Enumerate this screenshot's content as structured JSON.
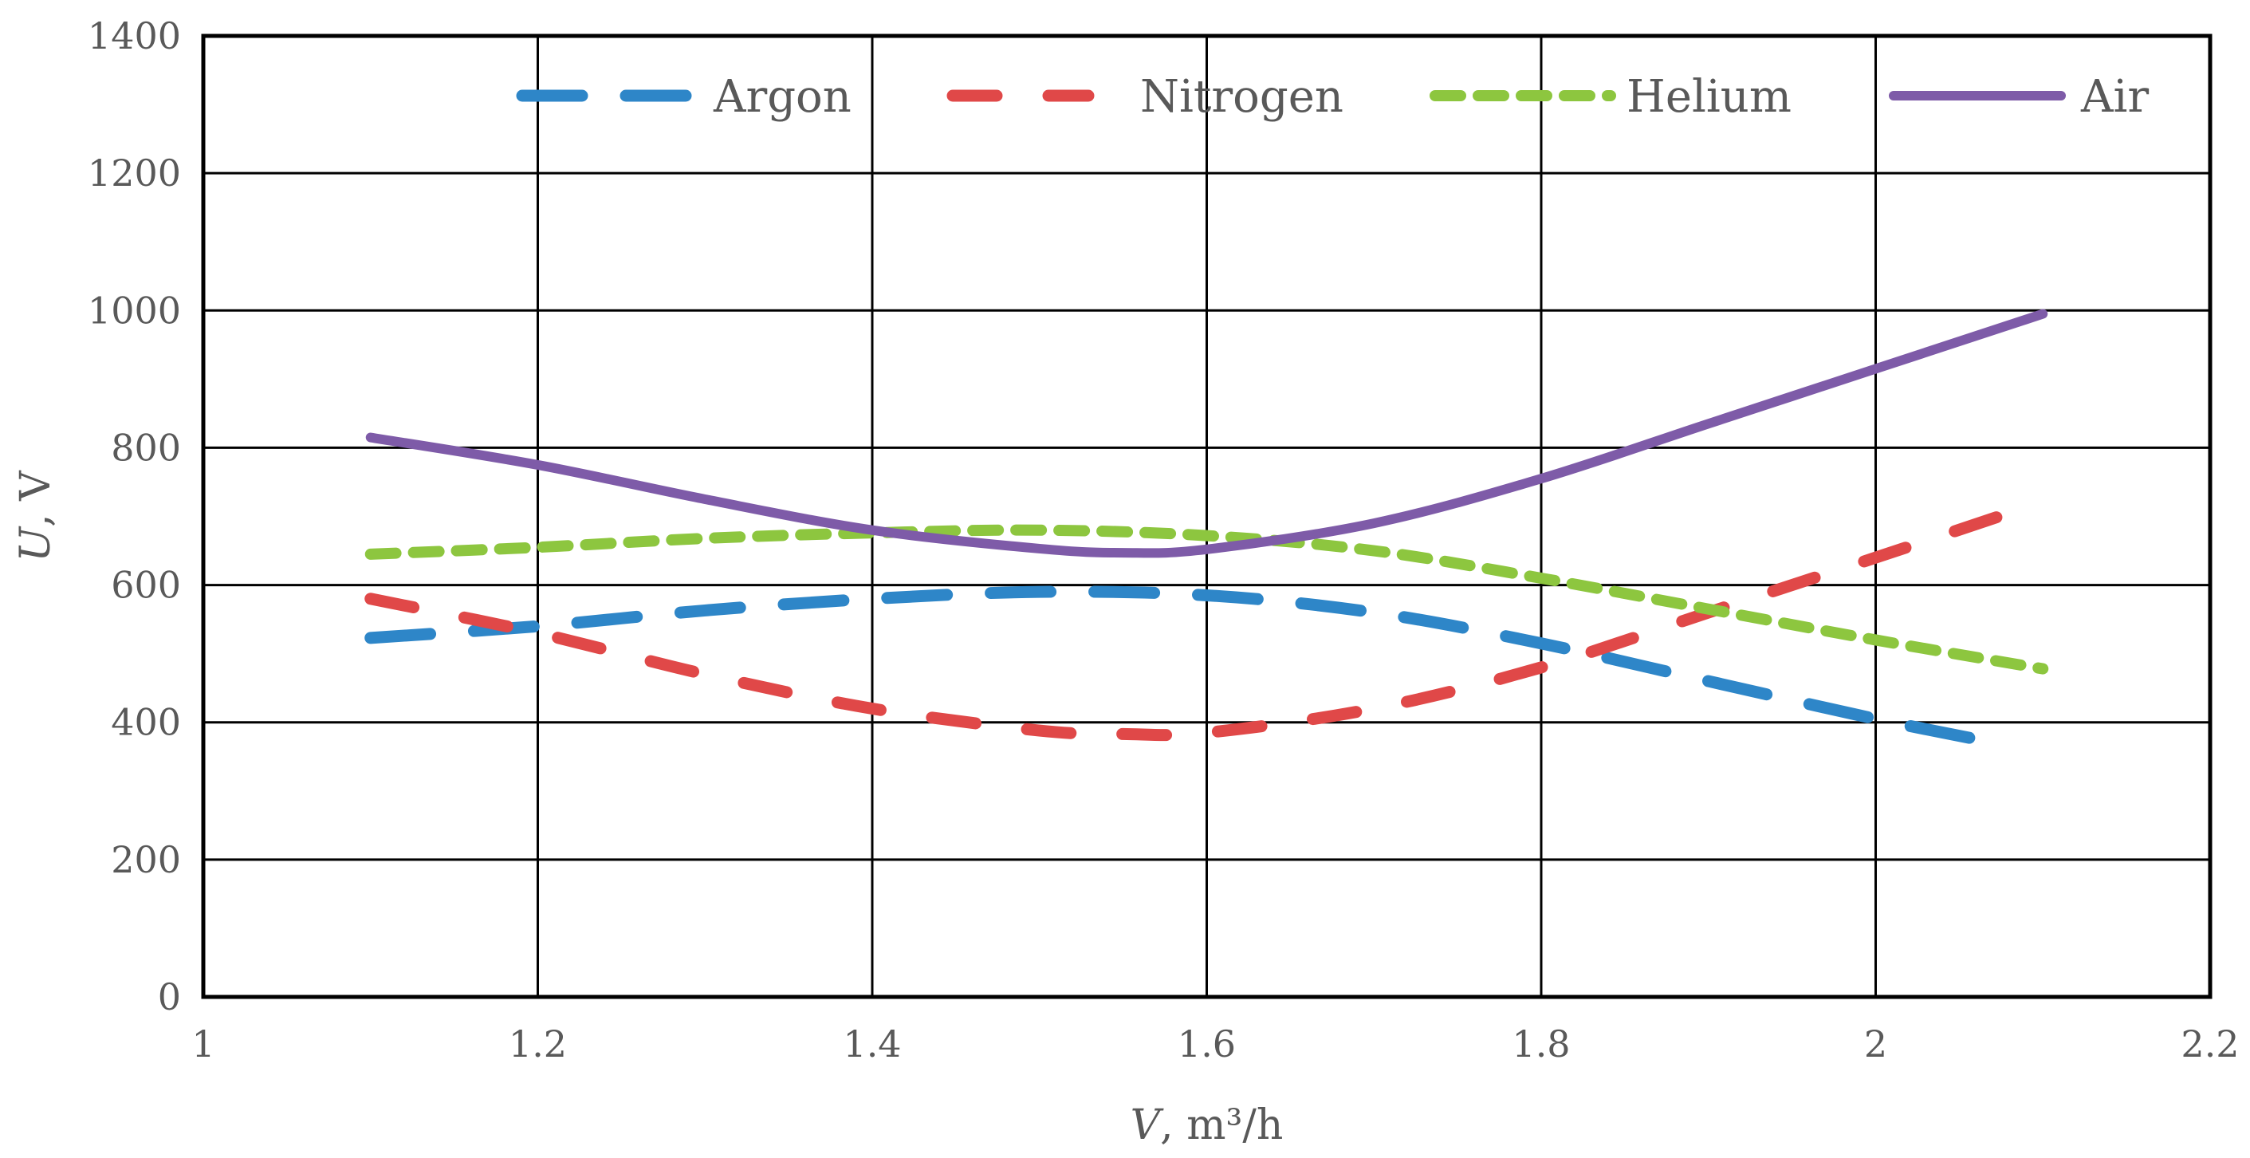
{
  "chart_data": {
    "type": "line",
    "title": "",
    "xlabel": "V, m³/h",
    "xlabel_parts": {
      "symbol": "V",
      "unit": ", m³/h"
    },
    "ylabel": "U, V",
    "ylabel_parts": {
      "symbol": "U",
      "unit": ", V"
    },
    "xlim": [
      1,
      2.2
    ],
    "ylim": [
      0,
      1400
    ],
    "xticks": [
      1,
      1.2,
      1.4,
      1.6,
      1.8,
      2,
      2.2
    ],
    "xtick_labels": [
      "1",
      "1.2",
      "1.4",
      "1.6",
      "1.8",
      "2",
      "2.2"
    ],
    "yticks": [
      0,
      200,
      400,
      600,
      800,
      1000,
      1200,
      1400
    ],
    "ytick_labels": [
      "0",
      "200",
      "400",
      "600",
      "800",
      "1000",
      "1200",
      "1400"
    ],
    "grid": true,
    "legend_position": "top",
    "series": [
      {
        "name": "Argon",
        "color": "#2E86C8",
        "style": "long-dash",
        "x": [
          1.1,
          1.2,
          1.3,
          1.4,
          1.5,
          1.6,
          1.7,
          1.8,
          1.9,
          2.0,
          2.08
        ],
        "y": [
          523,
          540,
          563,
          580,
          590,
          585,
          560,
          515,
          460,
          405,
          366
        ]
      },
      {
        "name": "Nitrogen",
        "color": "#E04848",
        "style": "dash",
        "x": [
          1.1,
          1.2,
          1.3,
          1.4,
          1.5,
          1.55,
          1.6,
          1.7,
          1.8,
          1.9,
          2.0,
          2.08
        ],
        "y": [
          580,
          530,
          470,
          420,
          388,
          383,
          385,
          420,
          480,
          560,
          640,
          705
        ]
      },
      {
        "name": "Helium",
        "color": "#8DC63F",
        "style": "short-dash",
        "x": [
          1.1,
          1.2,
          1.3,
          1.4,
          1.5,
          1.6,
          1.7,
          1.8,
          1.9,
          2.0,
          2.1
        ],
        "y": [
          645,
          655,
          668,
          676,
          680,
          672,
          650,
          610,
          565,
          520,
          478
        ]
      },
      {
        "name": "Air",
        "color": "#7E5BA8",
        "style": "solid",
        "x": [
          1.1,
          1.2,
          1.3,
          1.4,
          1.5,
          1.55,
          1.6,
          1.7,
          1.8,
          1.9,
          2.0,
          2.1
        ],
        "y": [
          815,
          775,
          725,
          680,
          653,
          647,
          652,
          690,
          755,
          835,
          915,
          995
        ]
      }
    ]
  }
}
